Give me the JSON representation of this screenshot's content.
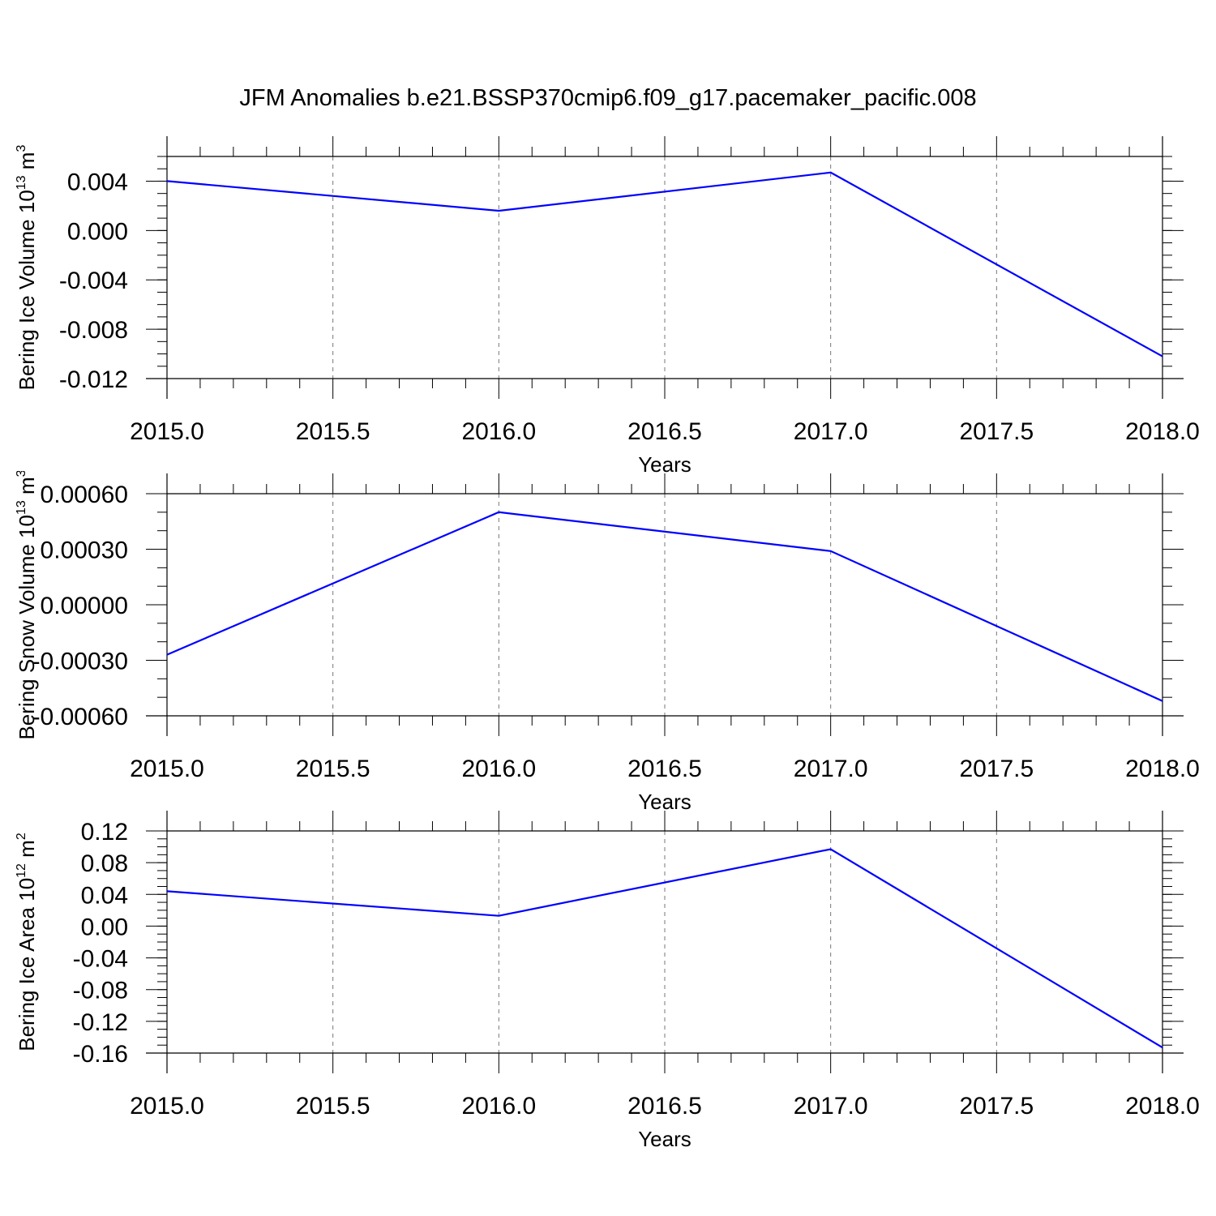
{
  "title": "JFM Anomalies b.e21.BSSP370cmip6.f09_g17.pacemaker_pacific.008",
  "line_color": "#0000ff",
  "chart_data": [
    {
      "type": "line",
      "xlabel": "Years",
      "ylabel": {
        "prefix": "Bering Ice Volume 10",
        "exp": "13",
        "unit": " m",
        "unit_exp": "3"
      },
      "x_ticks": [
        "2015.0",
        "2015.5",
        "2016.0",
        "2016.5",
        "2017.0",
        "2017.5",
        "2018.0"
      ],
      "y_ticks": [
        "0.004",
        "0.000",
        "-0.004",
        "-0.008",
        "-0.012"
      ],
      "xlim": [
        2015,
        2018
      ],
      "ylim": [
        -0.012,
        0.006
      ],
      "x": [
        2015,
        2016,
        2017,
        2018
      ],
      "values": [
        0.004,
        0.0016,
        0.0047,
        -0.0102
      ]
    },
    {
      "type": "line",
      "xlabel": "Years",
      "ylabel": {
        "prefix": "Bering Snow Volume 10",
        "exp": "13",
        "unit": " m",
        "unit_exp": "3"
      },
      "x_ticks": [
        "2015.0",
        "2015.5",
        "2016.0",
        "2016.5",
        "2017.0",
        "2017.5",
        "2018.0"
      ],
      "y_ticks": [
        "0.00060",
        "0.00030",
        "0.00000",
        "-0.00030",
        "-0.00060"
      ],
      "xlim": [
        2015,
        2018
      ],
      "ylim": [
        -0.0006,
        0.00072
      ],
      "x": [
        2015,
        2016,
        2017,
        2018
      ],
      "values": [
        -0.00027,
        0.0005,
        0.00029,
        -0.00052
      ]
    },
    {
      "type": "line",
      "xlabel": "Years",
      "ylabel": {
        "prefix": "Bering Ice Area 10",
        "exp": "12",
        "unit": " m",
        "unit_exp": "2"
      },
      "x_ticks": [
        "2015.0",
        "2015.5",
        "2016.0",
        "2016.5",
        "2017.0",
        "2017.5",
        "2018.0"
      ],
      "y_ticks": [
        "0.12",
        "0.08",
        "0.04",
        "0.00",
        "-0.04",
        "-0.08",
        "-0.12",
        "-0.16"
      ],
      "xlim": [
        2015,
        2018
      ],
      "ylim": [
        -0.16,
        0.12
      ],
      "x": [
        2015,
        2016,
        2017,
        2018
      ],
      "values": [
        0.044,
        0.013,
        0.097,
        -0.153
      ]
    }
  ]
}
